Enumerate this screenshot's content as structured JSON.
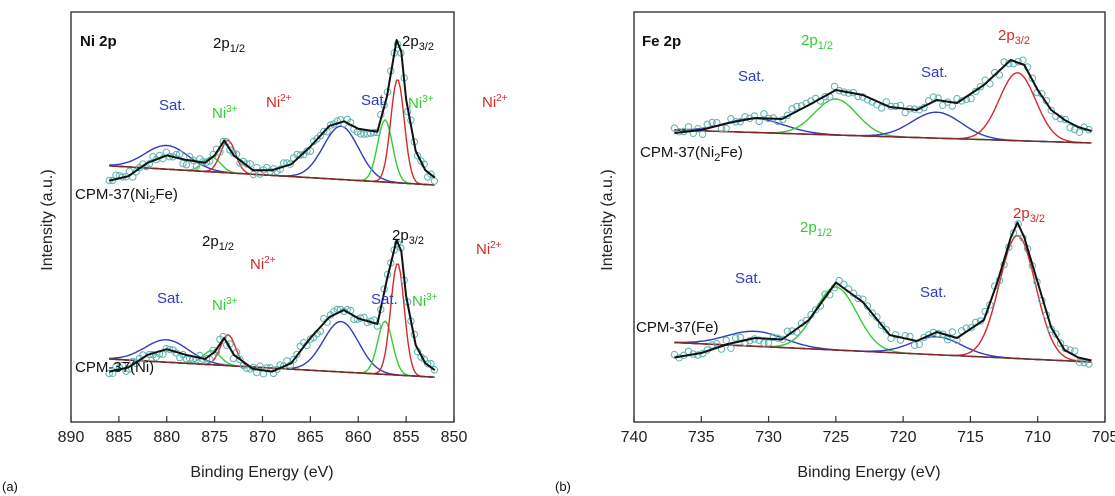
{
  "panel_labels": {
    "a": "(a)",
    "b": "(b)"
  },
  "colors": {
    "raw": "#5fb3b3",
    "envelope": "#111111",
    "background": "#7a2a2a",
    "sat": "#2f3cc0",
    "ni2": "#d42a2a",
    "ni3": "#33cc33",
    "fe_1_2": "#33cc33",
    "fe_3_2": "#d42a2a"
  },
  "chart_data": [
    {
      "type": "line",
      "title": "Ni 2p",
      "xlabel": "Binding Energy (eV)",
      "ylabel": "Intensity (a.u.)",
      "xlim": [
        890,
        850
      ],
      "reversed_x": true,
      "xticks": [
        890,
        885,
        880,
        875,
        870,
        865,
        860,
        855,
        850
      ],
      "series": [
        {
          "name": "CPM-37(Ni2Fe)",
          "name_parts": [
            "CPM-37(Ni",
            "2",
            "Fe)"
          ],
          "x": [
            886,
            884,
            882,
            880,
            878,
            876,
            875,
            874,
            873,
            871,
            869,
            867,
            865,
            863,
            861.5,
            860,
            858,
            857,
            856,
            855.5,
            855,
            854,
            853,
            852
          ],
          "y": [
            0.05,
            0.08,
            0.17,
            0.22,
            0.19,
            0.17,
            0.22,
            0.32,
            0.22,
            0.12,
            0.12,
            0.16,
            0.28,
            0.42,
            0.45,
            0.4,
            0.38,
            0.62,
            1.0,
            0.92,
            0.6,
            0.25,
            0.12,
            0.07
          ]
        },
        {
          "name": "CPM-37(Ni)",
          "x": [
            886,
            884,
            882,
            880,
            878,
            876,
            875,
            874,
            873,
            871,
            869,
            867,
            865,
            863,
            861.5,
            860,
            858,
            857,
            856,
            855.5,
            855,
            854,
            853,
            852
          ],
          "y": [
            0.06,
            0.09,
            0.18,
            0.22,
            0.18,
            0.15,
            0.2,
            0.3,
            0.18,
            0.08,
            0.06,
            0.12,
            0.3,
            0.45,
            0.5,
            0.44,
            0.4,
            0.72,
            1.0,
            0.92,
            0.6,
            0.25,
            0.12,
            0.07
          ]
        }
      ],
      "annotations_top": {
        "p12": {
          "base": "2p",
          "sub": "1/2"
        },
        "p32": {
          "base": "2p",
          "sub": "3/2"
        },
        "sat1": "Sat.",
        "ni3_1": "Ni",
        "ni3_1_sup": "3+",
        "ni2_1": "Ni",
        "ni2_1_sup": "2+",
        "sat2": "Sat.",
        "ni3_2": "Ni",
        "ni3_2_sup": "3+",
        "ni2_2": "Ni",
        "ni2_2_sup": "2+"
      },
      "annotations_bottom": {
        "p12": {
          "base": "2p",
          "sub": "1/2"
        },
        "p32": {
          "base": "2p",
          "sub": "3/2"
        },
        "sat1": "Sat.",
        "ni3_1": "Ni",
        "ni3_1_sup": "3+",
        "ni2_1": "Ni",
        "ni2_1_sup": "2+",
        "sat2": "Sat.",
        "ni3_2": "Ni",
        "ni3_2_sup": "3+",
        "ni2_2": "Ni",
        "ni2_2_sup": "2+"
      }
    },
    {
      "type": "line",
      "title": "Fe 2p",
      "xlabel": "Binding Energy (eV)",
      "ylabel": "Intensity (a.u.)",
      "xlim": [
        740,
        705
      ],
      "reversed_x": true,
      "xticks": [
        740,
        735,
        730,
        725,
        720,
        715,
        710,
        705
      ],
      "series": [
        {
          "name": "CPM-37(Ni2Fe)",
          "name_parts": [
            "CPM-37(Ni",
            "2",
            "Fe)"
          ],
          "x": [
            737,
            735,
            733,
            731,
            729,
            727,
            725,
            723,
            721,
            719,
            717.5,
            716,
            714,
            712,
            711,
            710,
            709,
            708,
            707,
            706
          ],
          "y": [
            0.12,
            0.15,
            0.22,
            0.27,
            0.26,
            0.4,
            0.55,
            0.5,
            0.38,
            0.35,
            0.45,
            0.42,
            0.6,
            0.85,
            0.8,
            0.55,
            0.35,
            0.25,
            0.18,
            0.14
          ]
        },
        {
          "name": "CPM-37(Fe)",
          "x": [
            737,
            735,
            733,
            731,
            729,
            727,
            725,
            723,
            721,
            719,
            717.5,
            716,
            714,
            713,
            712,
            711.5,
            711,
            710,
            709,
            708,
            707,
            706
          ],
          "y": [
            0.05,
            0.08,
            0.14,
            0.18,
            0.17,
            0.3,
            0.55,
            0.42,
            0.2,
            0.16,
            0.22,
            0.18,
            0.3,
            0.55,
            0.85,
            0.95,
            0.85,
            0.55,
            0.25,
            0.1,
            0.05,
            0.03
          ]
        }
      ],
      "annotations_top": {
        "p12": {
          "base": "2p",
          "sub": "1/2"
        },
        "p32": {
          "base": "2p",
          "sub": "3/2"
        },
        "sat1": "Sat.",
        "sat2": "Sat."
      },
      "annotations_bottom": {
        "p12": {
          "base": "2p",
          "sub": "1/2"
        },
        "p32": {
          "base": "2p",
          "sub": "3/2"
        },
        "sat1": "Sat.",
        "sat2": "Sat."
      }
    }
  ]
}
